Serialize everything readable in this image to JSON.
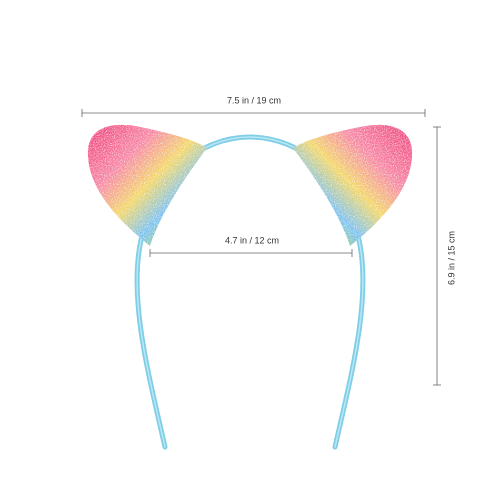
{
  "dimensions": {
    "width": "7.5 in / 19 cm",
    "inner_width": "4.7 in / 12 cm",
    "height": "6.9 in / 15 cm"
  }
}
